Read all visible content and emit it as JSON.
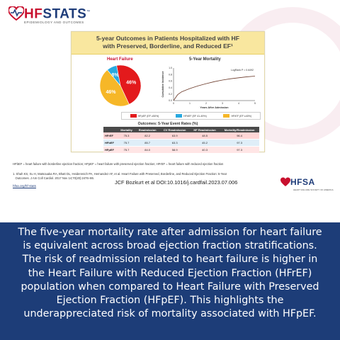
{
  "logo": {
    "hf": "HF",
    "stats": "STATS",
    "tm": "™",
    "sub": "EPIDEMIOLOGY AND OUTCOMES"
  },
  "card": {
    "title_line1": "5-year Outcomes in Patients Hospitalized with HF",
    "title_line2": "with Preserved, Borderline, and Reduced EF¹",
    "pie_title": "Heart Failure",
    "mortality_title": "5-Year Mortality",
    "logrank": "LogRank P = 0.6492",
    "y_label": "Cumulative Incidence",
    "x_label": "Years After Admission",
    "legend": [
      {
        "label": "HFpEF (EF ≥50%)",
        "color": "#e31a1c"
      },
      {
        "label": "HFbEF (EF 41-49%)",
        "color": "#29a9e0"
      },
      {
        "label": "HFrEF (EF ≤40%)",
        "color": "#f6b728"
      }
    ],
    "rates_title": "Outcomes: 5-Year Event Rates (%)",
    "table": {
      "headers": [
        "",
        "Mortality",
        "Readmission",
        "CV Readmission",
        "HF Readmission",
        "Mortality/Readmission"
      ],
      "rows": [
        [
          "HFrEF",
          "75.3",
          "82.2",
          "63.9",
          "48.5",
          "96.4"
        ],
        [
          "HFbEF",
          "75.7",
          "85.7",
          "63.3",
          "45.2",
          "97.3"
        ],
        [
          "HFpEF",
          "75.7",
          "84.0",
          "58.9",
          "40.3",
          "97.3"
        ]
      ]
    }
  },
  "chart_data": [
    {
      "type": "pie",
      "title": "Heart Failure",
      "categories": [
        "HFpEF",
        "HFbEF",
        "HFrEF"
      ],
      "values": [
        46,
        8,
        46
      ],
      "labels": [
        "46%",
        "8%",
        "46%"
      ],
      "colors": [
        "#e31a1c",
        "#29a9e0",
        "#f6b728"
      ]
    },
    {
      "type": "line",
      "title": "5-Year Mortality",
      "xlabel": "Years After Admission",
      "ylabel": "Cumulative Incidence",
      "xlim": [
        0,
        5
      ],
      "ylim": [
        0,
        1.0
      ],
      "x_ticks": [
        "0",
        "1",
        "2",
        "3",
        "4",
        "5"
      ],
      "y_ticks": [
        "0.0",
        "0.2",
        "0.4",
        "0.6",
        "0.8",
        "1.0"
      ],
      "annotation": "LogRank P = 0.6492",
      "series": [
        {
          "x": [
            0,
            0.25,
            0.5,
            1,
            1.5,
            2,
            2.5,
            3,
            3.5,
            4,
            4.5,
            5
          ],
          "y": [
            0,
            0.18,
            0.27,
            0.37,
            0.45,
            0.52,
            0.58,
            0.63,
            0.67,
            0.7,
            0.73,
            0.75
          ]
        }
      ]
    }
  ],
  "footnote": "HFbEF = heart failure with borderline ejection fraction; HFpEF = heart failure with preserved ejection fraction; HFrEF = heart failure with reduced ejection fraction",
  "reference_line1": "1. Shah KS, Xu H, Matsouaka RA, Bhatt DL, Heidenreich PA, Hernandez AF, et al. Heart Failure with Preserved, Borderline, and Reduced Ejection Fraction: 5-Year",
  "reference_line2": "Outcomes. J Am Coll Cardiol. 2017 Nov 14;70(20):2476–86.",
  "link": "hfsa.org/hf-stats",
  "citation": "JCF Bozkurt et al DOI:10.1016/j.cardfail.2023.07.006",
  "hfsa": {
    "name": "HFSA",
    "sub": "HEART FAILURE SOCIETY OF AMERICA"
  },
  "message": "The five-year mortality rate after admission for heart failure is equivalent across broad ejection fraction stratifications. The risk of readmission related to heart failure is higher in the Heart Failure with Reduced Ejection Fraction (HFrEF) population when compared to Heart Failure with Preserved Ejection Fraction (HFpEF). This highlights the underappreciated risk of mortality associated with HFpEF."
}
